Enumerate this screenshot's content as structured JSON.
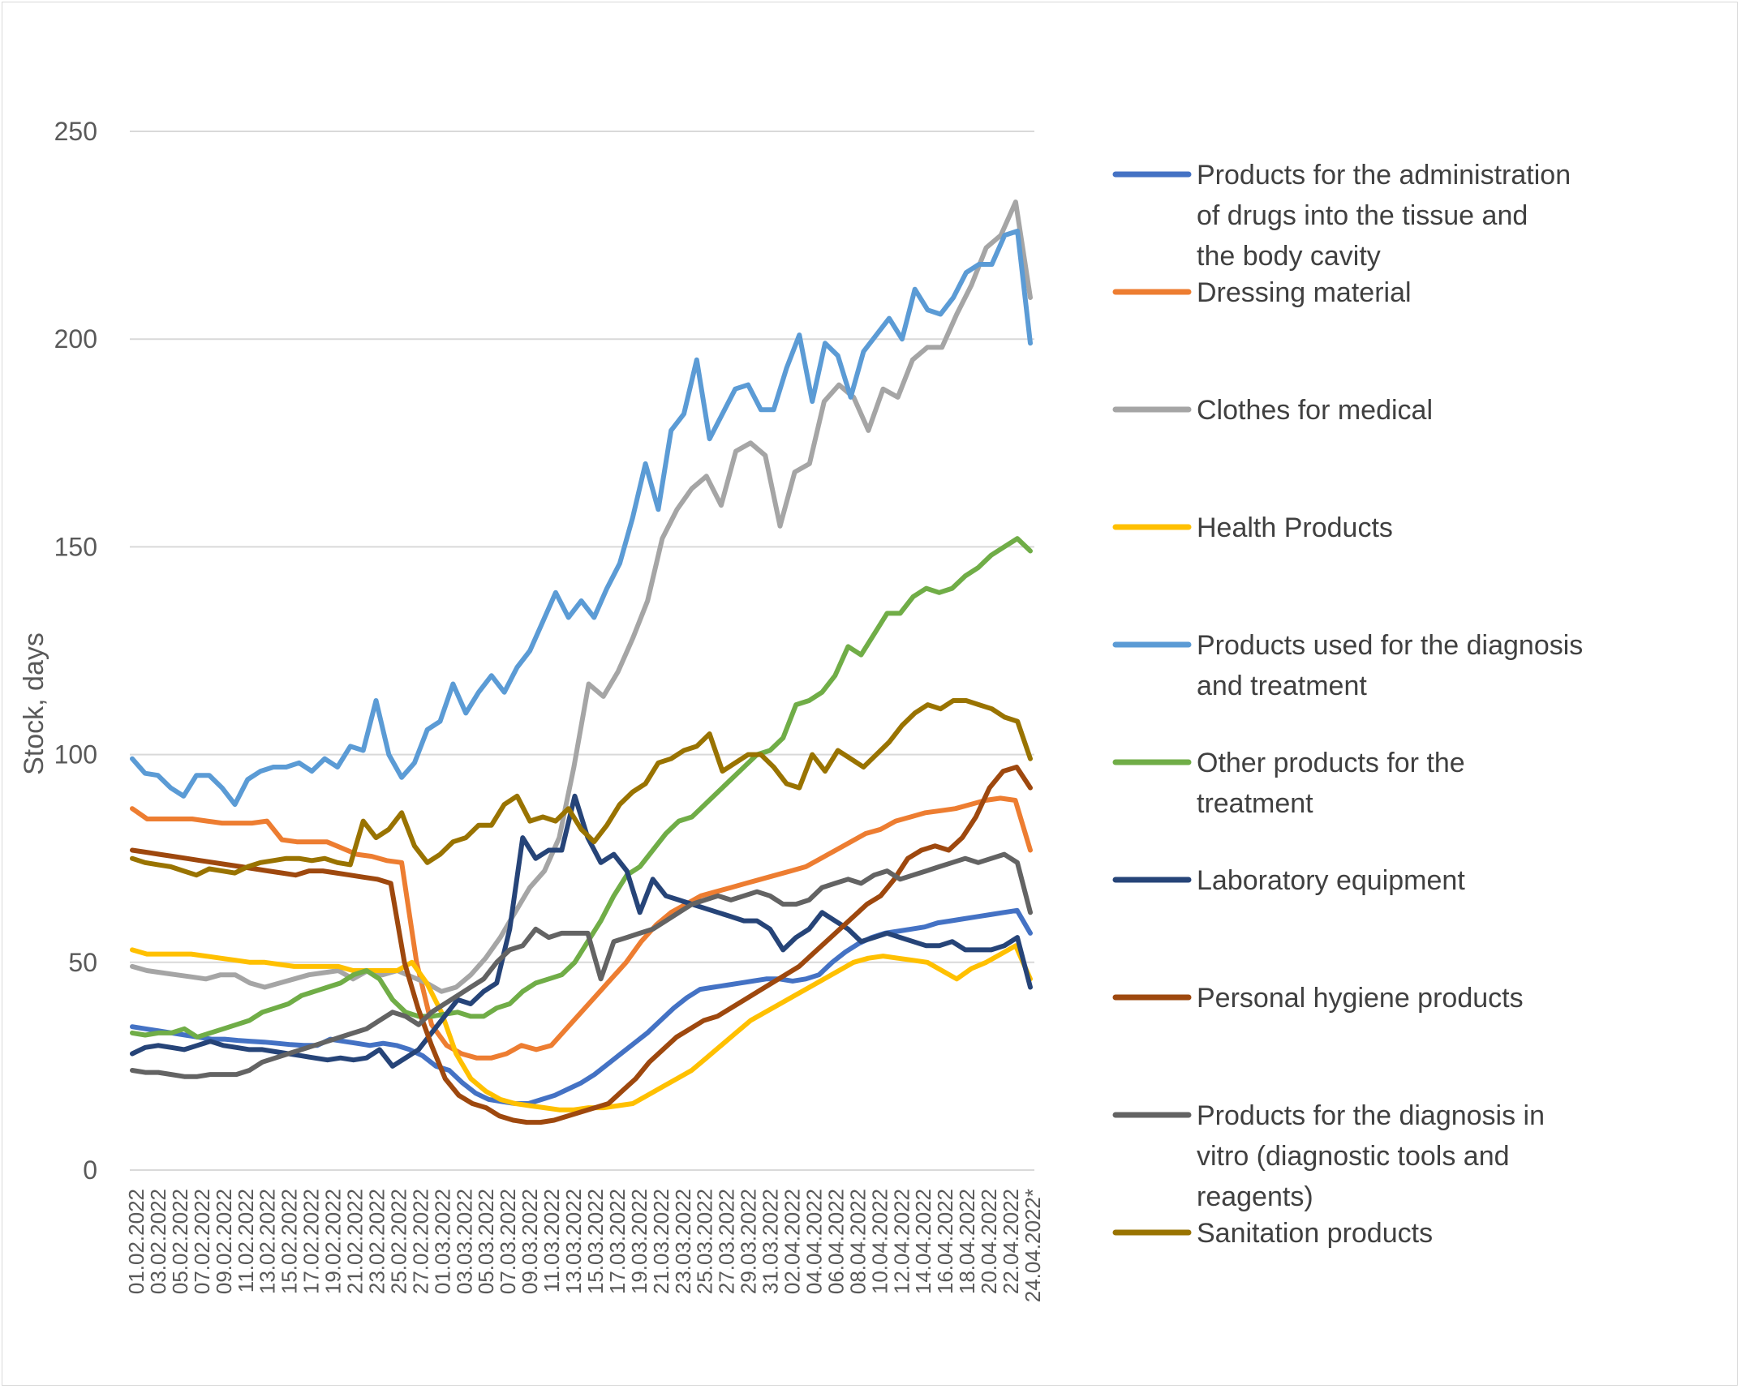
{
  "chart_data": {
    "type": "line",
    "title": "",
    "xlabel": "",
    "ylabel": "Stock, days",
    "ylim": [
      0,
      250
    ],
    "yticks": [
      0,
      50,
      100,
      150,
      200,
      250
    ],
    "grid": "horizontal",
    "legend_position": "right",
    "x_tick_labels": [
      "01.02.2022",
      "03.02.2022",
      "05.02.2022",
      "07.02.2022",
      "09.02.2022",
      "11.02.2022",
      "13.02.2022",
      "15.02.2022",
      "17.02.2022",
      "19.02.2022",
      "21.02.2022",
      "23.02.2022",
      "25.02.2022",
      "27.02.2022",
      "01.03.2022",
      "03.03.2022",
      "05.03.2022",
      "07.03.2022",
      "09.03.2022",
      "11.03.2022",
      "13.03.2022",
      "15.03.2022",
      "17.03.2022",
      "19.03.2022",
      "21.03.2022",
      "23.03.2022",
      "25.03.2022",
      "27.03.2022",
      "29.03.2022",
      "31.03.2022",
      "02.04.2022",
      "04.04.2022",
      "06.04.2022",
      "08.04.2022",
      "10.04.2022",
      "12.04.2022",
      "14.04.2022",
      "16.04.2022",
      "18.04.2022",
      "20.04.2022",
      "22.04.2022",
      "24.04.2022*"
    ],
    "series": [
      {
        "name": "Products for the administration of drugs into the tissue and the body cavity",
        "color": "#4472C4",
        "values": [
          34.5,
          34,
          33.5,
          33,
          32.5,
          32,
          31.5,
          31.5,
          31.2,
          31,
          30.8,
          30.5,
          30.2,
          30,
          30,
          31.5,
          31,
          30.5,
          30,
          30.5,
          30,
          29,
          27.5,
          25,
          24,
          21,
          18.5,
          17,
          16.5,
          16,
          16,
          17,
          18,
          19.5,
          21,
          23,
          25.5,
          28,
          30.5,
          33,
          36,
          39,
          41.5,
          43.5,
          44,
          44.5,
          45,
          45.5,
          46,
          46,
          45.5,
          46,
          47,
          50,
          52.5,
          54.5,
          56,
          57,
          57.5,
          58,
          58.5,
          59.5,
          60,
          60.5,
          61,
          61.5,
          62,
          62.5,
          57
        ]
      },
      {
        "name": "Dressing material",
        "color": "#ED7D31",
        "values": [
          87,
          84.5,
          84.5,
          84.5,
          84.5,
          84,
          83.5,
          83.5,
          83.5,
          84,
          79.5,
          79,
          79,
          79,
          77.5,
          76,
          75.5,
          74.5,
          74,
          50,
          35,
          30,
          28,
          27,
          27,
          28,
          30,
          29,
          30,
          34,
          38,
          42,
          46,
          50,
          55,
          59,
          62,
          64,
          66,
          67,
          68,
          69,
          70,
          71,
          72,
          73,
          75,
          77,
          79,
          81,
          82,
          84,
          85,
          86,
          86.5,
          87,
          88,
          89,
          89.5,
          89,
          77
        ]
      },
      {
        "name": "Clothes for medical",
        "color": "#A5A5A5",
        "values": [
          49,
          48,
          47.5,
          47,
          46.5,
          46,
          47,
          47,
          45,
          44,
          45,
          46,
          47,
          47.5,
          48,
          46,
          48,
          47,
          48,
          46.5,
          45,
          43,
          44,
          47,
          51,
          56,
          62,
          68,
          72,
          80,
          97,
          117,
          114,
          120,
          128,
          137,
          152,
          159,
          164,
          167,
          160,
          173,
          175,
          172,
          155,
          168,
          170,
          185,
          189,
          186,
          178,
          188,
          186,
          195,
          198,
          198,
          206,
          213,
          222,
          225,
          233,
          210
        ]
      },
      {
        "name": "Health Products",
        "color": "#FFC000",
        "values": [
          53,
          52,
          52,
          52,
          52,
          51.5,
          51,
          50.5,
          50,
          50,
          49.5,
          49,
          49,
          49,
          49,
          48,
          48,
          48,
          48,
          50,
          45,
          38,
          28,
          22,
          19,
          17,
          16,
          15.5,
          15,
          14.5,
          14.5,
          15,
          15,
          15.5,
          16,
          18,
          20,
          22,
          24,
          27,
          30,
          33,
          36,
          38,
          40,
          42,
          44,
          46,
          48,
          50,
          51,
          51.5,
          51,
          50.5,
          50,
          48,
          46,
          48.5,
          50,
          52,
          54,
          46
        ]
      },
      {
        "name": "Products used for the diagnosis and treatment",
        "color": "#5B9BD5",
        "values": [
          99,
          95.5,
          95,
          92,
          90,
          95,
          95,
          92,
          88,
          94,
          96,
          97,
          97,
          98,
          96,
          99,
          97,
          102,
          101,
          113,
          100,
          94.5,
          98,
          106,
          108,
          117,
          110,
          115,
          119,
          115,
          121,
          125,
          132,
          139,
          133,
          137,
          133,
          140,
          146,
          157,
          170,
          159,
          178,
          182,
          195,
          176,
          182,
          188,
          189,
          183,
          183,
          193,
          201,
          185,
          199,
          196,
          186,
          197,
          201,
          205,
          200,
          212,
          207,
          206,
          210,
          216,
          218,
          218,
          225,
          226,
          199
        ]
      },
      {
        "name": "Other products for the treatment",
        "color": "#70AD47",
        "values": [
          33,
          32.5,
          33,
          33,
          34,
          32,
          33,
          34,
          35,
          36,
          38,
          39,
          40,
          42,
          43,
          44,
          45,
          47,
          48,
          46,
          41,
          38,
          37,
          37,
          37.5,
          38,
          37,
          37,
          39,
          40,
          43,
          45,
          46,
          47,
          50,
          55,
          60,
          66,
          71,
          73,
          77,
          81,
          84,
          85,
          88,
          91,
          94,
          97,
          100,
          101,
          104,
          112,
          113,
          115,
          119,
          126,
          124,
          129,
          134,
          134,
          138,
          140,
          139,
          140,
          143,
          145,
          148,
          150,
          152,
          149
        ]
      },
      {
        "name": "Laboratory equipment",
        "color": "#264478",
        "values": [
          28,
          29.5,
          30,
          29.5,
          29,
          30,
          31,
          30,
          29.5,
          29,
          29,
          28.5,
          28,
          27.5,
          27,
          26.5,
          27,
          26.5,
          27,
          29,
          25,
          27,
          29,
          33,
          37,
          41,
          40,
          43,
          45,
          58,
          80,
          75,
          77,
          77,
          90,
          80,
          74,
          76,
          72,
          62,
          70,
          66,
          65,
          64,
          63,
          62,
          61,
          60,
          60,
          58,
          53,
          56,
          58,
          62,
          60,
          58,
          55,
          56,
          57,
          56,
          55,
          54,
          54,
          55,
          53,
          53,
          53,
          54,
          56,
          44
        ]
      },
      {
        "name": "Personal hygiene products",
        "color": "#9E480E",
        "values": [
          77,
          76.5,
          76,
          75.5,
          75,
          74.5,
          74,
          73.5,
          73,
          72.5,
          72,
          71.5,
          71,
          72,
          72,
          71.5,
          71,
          70.5,
          70,
          69,
          50,
          39,
          30,
          22,
          18,
          16,
          15,
          13,
          12,
          11.5,
          11.5,
          12,
          13,
          14,
          15,
          16,
          19,
          22,
          26,
          29,
          32,
          34,
          36,
          37,
          39,
          41,
          43,
          45,
          47,
          49,
          52,
          55,
          58,
          61,
          64,
          66,
          70,
          75,
          77,
          78,
          77,
          80,
          85,
          92,
          96,
          97,
          92
        ]
      },
      {
        "name": "Products for the diagnosis in vitro (diagnostic tools and reagents)",
        "color": "#636363",
        "values": [
          24,
          23.5,
          23.5,
          23,
          22.5,
          22.5,
          23,
          23,
          23,
          24,
          26,
          27,
          28,
          29,
          30,
          31,
          32,
          33,
          34,
          36,
          38,
          37,
          35,
          38,
          40,
          42,
          44,
          46,
          50,
          53,
          54,
          58,
          56,
          57,
          57,
          57,
          46,
          55,
          56,
          57,
          58,
          60,
          62,
          64,
          65,
          66,
          65,
          66,
          67,
          66,
          64,
          64,
          65,
          68,
          69,
          70,
          69,
          71,
          72,
          70,
          71,
          72,
          73,
          74,
          75,
          74,
          75,
          76,
          74,
          62
        ]
      },
      {
        "name": "Sanitation products",
        "color": "#997300",
        "values": [
          75,
          74,
          73.5,
          73,
          72,
          71,
          72.5,
          72,
          71.5,
          73,
          74,
          74.5,
          75,
          75,
          74.5,
          75,
          74,
          73.5,
          84,
          80,
          82,
          86,
          78,
          74,
          76,
          79,
          80,
          83,
          83,
          88,
          90,
          84,
          85,
          84,
          87,
          82,
          79,
          83,
          88,
          91,
          93,
          98,
          99,
          101,
          102,
          105,
          96,
          98,
          100,
          100,
          97,
          93,
          92,
          100,
          96,
          101,
          99,
          97,
          100,
          103,
          107,
          110,
          112,
          111,
          113,
          113,
          112,
          111,
          109,
          108,
          99
        ]
      }
    ]
  }
}
